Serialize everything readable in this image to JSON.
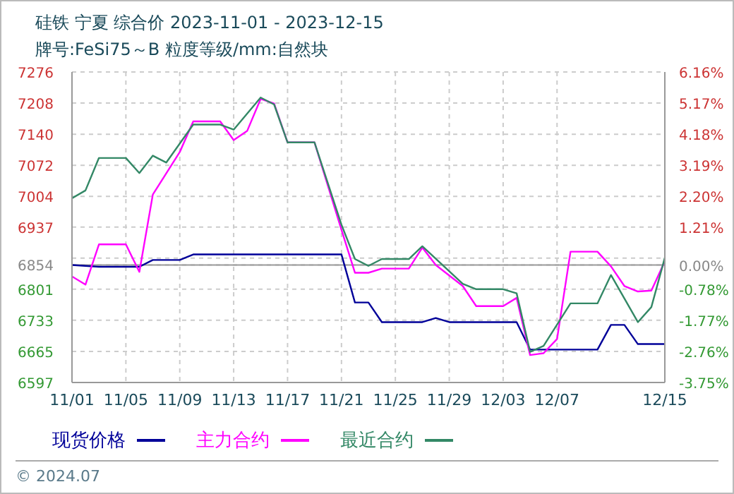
{
  "chart_data": {
    "type": "line",
    "title": "硅铁 宁夏 综合价 2023-11-01 - 2023-12-15",
    "subtitle": "牌号:FeSi75～B 粒度等级/mm:自然块",
    "annotations": [
      "© 2024.07"
    ],
    "xlim": [
      "2023-11-01",
      "2023-12-15"
    ],
    "xticks": [
      {
        "value": "2023-11-01",
        "label": "11/01"
      },
      {
        "value": "2023-11-05",
        "label": "11/05"
      },
      {
        "value": "2023-11-09",
        "label": "11/09"
      },
      {
        "value": "2023-11-13",
        "label": "11/13"
      },
      {
        "value": "2023-11-17",
        "label": "11/17"
      },
      {
        "value": "2023-11-21",
        "label": "11/21"
      },
      {
        "value": "2023-11-25",
        "label": "11/25"
      },
      {
        "value": "2023-11-29",
        "label": "11/29"
      },
      {
        "value": "2023-12-03",
        "label": "12/03"
      },
      {
        "value": "2023-12-07",
        "label": "12/07"
      },
      {
        "value": "2023-12-15",
        "label": "12/15"
      }
    ],
    "ylim": [
      6597,
      7276
    ],
    "yticks": [
      6597,
      6665,
      6733,
      6801,
      6854,
      {
        "value": 6869,
        "label": null
      },
      6937,
      7004,
      7072,
      7140,
      7208,
      7276
    ],
    "y2lim": [
      -3.75,
      6.16
    ],
    "y2ticks": [
      {
        "value": -3.75,
        "label": "-3.75%"
      },
      {
        "value": -2.76,
        "label": "-2.76%"
      },
      {
        "value": -1.77,
        "label": "-1.77%"
      },
      {
        "value": -0.78,
        "label": "-0.78%"
      },
      {
        "value": 0,
        "label": "0.00%"
      },
      {
        "value": 1.21,
        "label": "1.21%"
      },
      {
        "value": 2.2,
        "label": "2.20%"
      },
      {
        "value": 3.19,
        "label": "3.19%"
      },
      {
        "value": 4.18,
        "label": "4.18%"
      },
      {
        "value": 5.17,
        "label": "5.17%"
      },
      {
        "value": 6.16,
        "label": "6.16%"
      }
    ],
    "ref_lines": [
      {
        "axis": "y",
        "value": 6854,
        "color": "#999999"
      }
    ],
    "grid": true,
    "legend": "bottom",
    "marker": "none",
    "line_style": "solid",
    "series": [
      {
        "name": "现货价格",
        "color": "#000099",
        "x": [
          "2023-11-01",
          "2023-11-03",
          "2023-11-06",
          "2023-11-07",
          "2023-11-09",
          "2023-11-10",
          "2023-11-21",
          "2023-11-22",
          "2023-11-23",
          "2023-11-24",
          "2023-11-27",
          "2023-11-28",
          "2023-11-29",
          "2023-12-04",
          "2023-12-05",
          "2023-12-10",
          "2023-12-11",
          "2023-12-12",
          "2023-12-13",
          "2023-12-15"
        ],
        "values": [
          6854,
          6850,
          6850,
          6865,
          6865,
          6877,
          6877,
          6772,
          6772,
          6729,
          6729,
          6738,
          6729,
          6729,
          6669,
          6669,
          6723,
          6723,
          6681,
          6681
        ]
      },
      {
        "name": "主力合约",
        "color": "#ff00ff",
        "x": [
          "2023-11-01",
          "2023-11-02",
          "2023-11-03",
          "2023-11-05",
          "2023-11-06",
          "2023-11-07",
          "2023-11-09",
          "2023-11-10",
          "2023-11-12",
          "2023-11-13",
          "2023-11-14",
          "2023-11-15",
          "2023-11-16",
          "2023-11-17",
          "2023-11-19",
          "2023-11-21",
          "2023-11-22",
          "2023-11-23",
          "2023-11-24",
          "2023-11-26",
          "2023-11-27",
          "2023-11-28",
          "2023-11-30",
          "2023-12-01",
          "2023-12-03",
          "2023-12-04",
          "2023-12-05",
          "2023-12-06",
          "2023-12-07",
          "2023-12-08",
          "2023-12-10",
          "2023-12-11",
          "2023-12-12",
          "2023-12-13",
          "2023-12-14",
          "2023-12-15"
        ],
        "values": [
          6829,
          6811,
          6899,
          6899,
          6839,
          7008,
          7101,
          7168,
          7168,
          7127,
          7147,
          7217,
          7207,
          7122,
          7122,
          6931,
          6837,
          6837,
          6846,
          6846,
          6892,
          6854,
          6808,
          6764,
          6764,
          6782,
          6657,
          6661,
          6692,
          6883,
          6883,
          6851,
          6808,
          6796,
          6798,
          6862
        ]
      },
      {
        "name": "最近合约",
        "color": "#338866",
        "x": [
          "2023-11-01",
          "2023-11-02",
          "2023-11-03",
          "2023-11-05",
          "2023-11-06",
          "2023-11-07",
          "2023-11-08",
          "2023-11-10",
          "2023-11-12",
          "2023-11-13",
          "2023-11-15",
          "2023-11-16",
          "2023-11-17",
          "2023-11-19",
          "2023-11-21",
          "2023-11-22",
          "2023-11-23",
          "2023-11-24",
          "2023-11-26",
          "2023-11-27",
          "2023-11-30",
          "2023-12-01",
          "2023-12-03",
          "2023-12-04",
          "2023-12-05",
          "2023-12-06",
          "2023-12-08",
          "2023-12-10",
          "2023-12-11",
          "2023-12-13",
          "2023-12-14",
          "2023-12-15"
        ],
        "values": [
          7000,
          7017,
          7088,
          7088,
          7055,
          7093,
          7078,
          7161,
          7161,
          7150,
          7220,
          7205,
          7122,
          7122,
          6942,
          6867,
          6852,
          6867,
          6867,
          6895,
          6813,
          6801,
          6801,
          6792,
          6664,
          6677,
          6770,
          6770,
          6832,
          6729,
          6762,
          6870
        ]
      }
    ]
  }
}
